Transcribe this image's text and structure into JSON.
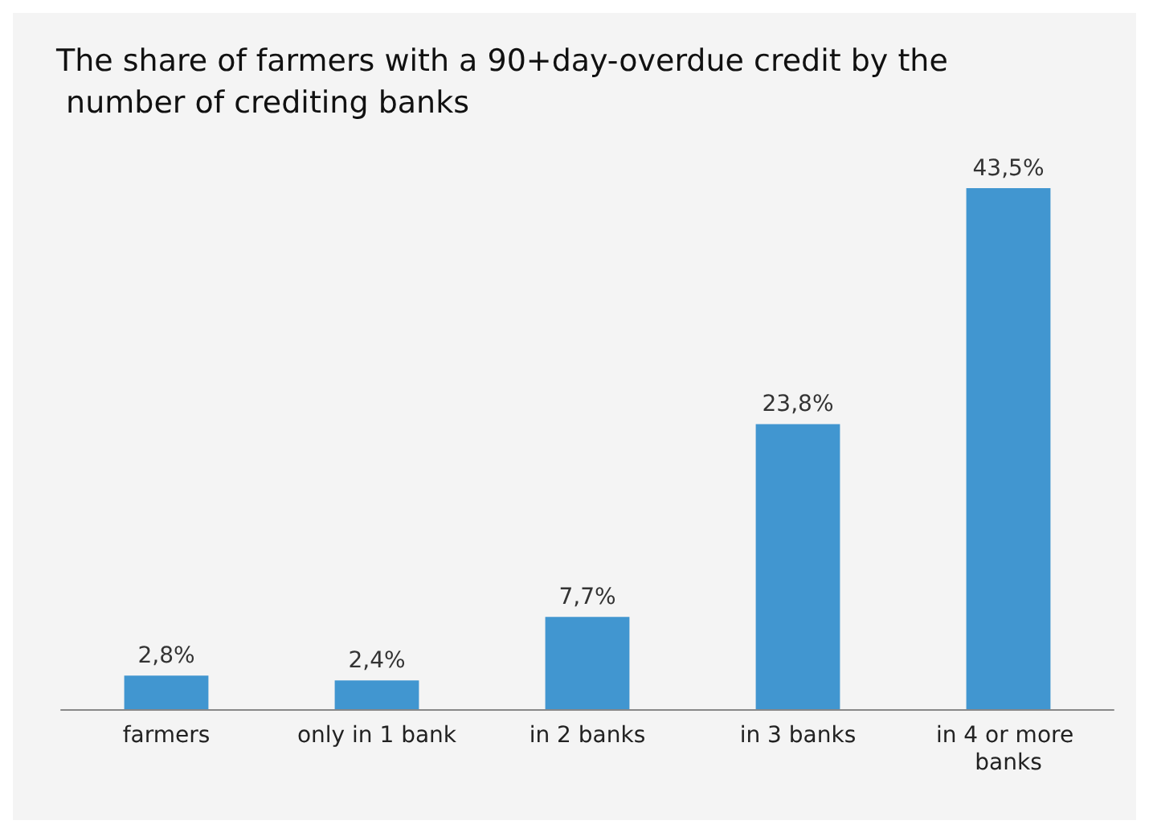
{
  "chart_data": {
    "type": "bar",
    "title": "The share of farmers with a 90+day-overdue credit by the number of crediting banks",
    "categories": [
      "farmers",
      "only in 1 bank",
      "in 2 banks",
      "in 3 banks",
      "in 4 or more banks"
    ],
    "values": [
      2.8,
      2.4,
      7.7,
      23.8,
      43.5
    ],
    "value_labels": [
      "2,8%",
      "2,4%",
      "7,7%",
      "23,8%",
      "43,5%"
    ],
    "color": "#4196d0"
  }
}
